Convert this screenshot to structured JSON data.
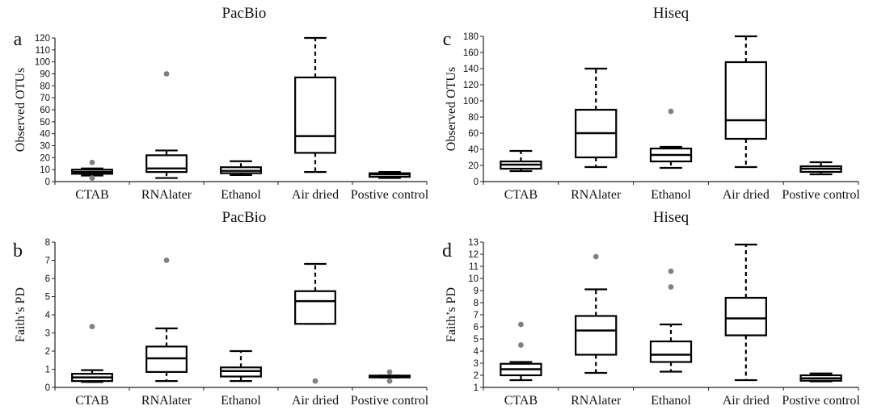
{
  "chart_data": [
    {
      "panel": "a",
      "type": "box",
      "title": "PacBio",
      "ylabel": "Observed OTUs",
      "ylim": [
        0,
        120
      ],
      "yticks": [
        0,
        10,
        20,
        30,
        40,
        50,
        60,
        70,
        80,
        90,
        100,
        110,
        120
      ],
      "categories": [
        "CTAB",
        "RNAlater",
        "Ethanol",
        "Air dried",
        "Postive control"
      ],
      "boxes": [
        {
          "min": 5,
          "q1": 6.5,
          "median": 8,
          "q3": 10,
          "max": 11,
          "outliers": [
            16,
            3
          ]
        },
        {
          "min": 3,
          "q1": 8,
          "median": 11,
          "q3": 22,
          "max": 26,
          "outliers": [
            90
          ]
        },
        {
          "min": 5.5,
          "q1": 7,
          "median": 9,
          "q3": 12,
          "max": 17,
          "outliers": []
        },
        {
          "min": 8,
          "q1": 24,
          "median": 38,
          "q3": 87,
          "max": 120,
          "outliers": []
        },
        {
          "min": 3,
          "q1": 4,
          "median": 6,
          "q3": 7,
          "max": 8,
          "outliers": []
        }
      ]
    },
    {
      "panel": "c",
      "type": "box",
      "title": "Hiseq",
      "ylabel": "Observed OTUs",
      "ylim": [
        0,
        180
      ],
      "yticks": [
        0,
        20,
        40,
        60,
        80,
        100,
        120,
        140,
        160,
        180
      ],
      "categories": [
        "CTAB",
        "RNAlater",
        "Ethanol",
        "Air dried",
        "Postive control"
      ],
      "boxes": [
        {
          "min": 13,
          "q1": 16,
          "median": 21,
          "q3": 25,
          "max": 38,
          "outliers": []
        },
        {
          "min": 18,
          "q1": 30,
          "median": 60,
          "q3": 89,
          "max": 140,
          "outliers": []
        },
        {
          "min": 17,
          "q1": 25,
          "median": 33,
          "q3": 41,
          "max": 43,
          "outliers": [
            87
          ]
        },
        {
          "min": 18,
          "q1": 53,
          "median": 76,
          "q3": 148,
          "max": 180,
          "outliers": []
        },
        {
          "min": 9,
          "q1": 12,
          "median": 16,
          "q3": 19,
          "max": 24,
          "outliers": []
        }
      ]
    },
    {
      "panel": "b",
      "type": "box",
      "title": "PacBio",
      "ylabel": "Faith’s PD",
      "ylim": [
        0,
        8
      ],
      "yticks": [
        0,
        1,
        2,
        3,
        4,
        5,
        6,
        7,
        8
      ],
      "categories": [
        "CTAB",
        "RNAlater",
        "Ethanol",
        "Air dried",
        "Postive control"
      ],
      "boxes": [
        {
          "min": 0.3,
          "q1": 0.35,
          "median": 0.55,
          "q3": 0.75,
          "max": 0.95,
          "outliers": [
            3.35
          ]
        },
        {
          "min": 0.35,
          "q1": 0.85,
          "median": 1.6,
          "q3": 2.25,
          "max": 3.25,
          "outliers": [
            7.0
          ]
        },
        {
          "min": 0.35,
          "q1": 0.6,
          "median": 0.9,
          "q3": 1.1,
          "max": 2.0,
          "outliers": []
        },
        {
          "min": 3.5,
          "q1": 3.5,
          "median": 4.75,
          "q3": 5.3,
          "max": 6.8,
          "outliers": [
            0.35
          ]
        },
        {
          "min": 0.55,
          "q1": 0.55,
          "median": 0.6,
          "q3": 0.65,
          "max": 0.65,
          "outliers": [
            0.85,
            0.35
          ]
        }
      ]
    },
    {
      "panel": "d",
      "type": "box",
      "title": "Hiseq",
      "ylabel": "Faith’s PD",
      "ylim": [
        1,
        13
      ],
      "yticks": [
        1,
        2,
        3,
        4,
        5,
        6,
        7,
        8,
        9,
        10,
        11,
        12,
        13
      ],
      "categories": [
        "CTAB",
        "RNAlater",
        "Ethanol",
        "Air dried",
        "Postive control"
      ],
      "boxes": [
        {
          "min": 1.6,
          "q1": 2.0,
          "median": 2.5,
          "q3": 2.95,
          "max": 3.1,
          "outliers": [
            4.5,
            6.2
          ]
        },
        {
          "min": 2.2,
          "q1": 3.7,
          "median": 5.7,
          "q3": 6.9,
          "max": 9.1,
          "outliers": [
            11.8
          ]
        },
        {
          "min": 2.3,
          "q1": 3.1,
          "median": 3.7,
          "q3": 4.8,
          "max": 6.2,
          "outliers": [
            9.3,
            10.6
          ]
        },
        {
          "min": 1.6,
          "q1": 5.3,
          "median": 6.7,
          "q3": 8.4,
          "max": 12.8,
          "outliers": []
        },
        {
          "min": 1.5,
          "q1": 1.55,
          "median": 1.75,
          "q3": 2.0,
          "max": 2.15,
          "outliers": []
        }
      ]
    }
  ]
}
